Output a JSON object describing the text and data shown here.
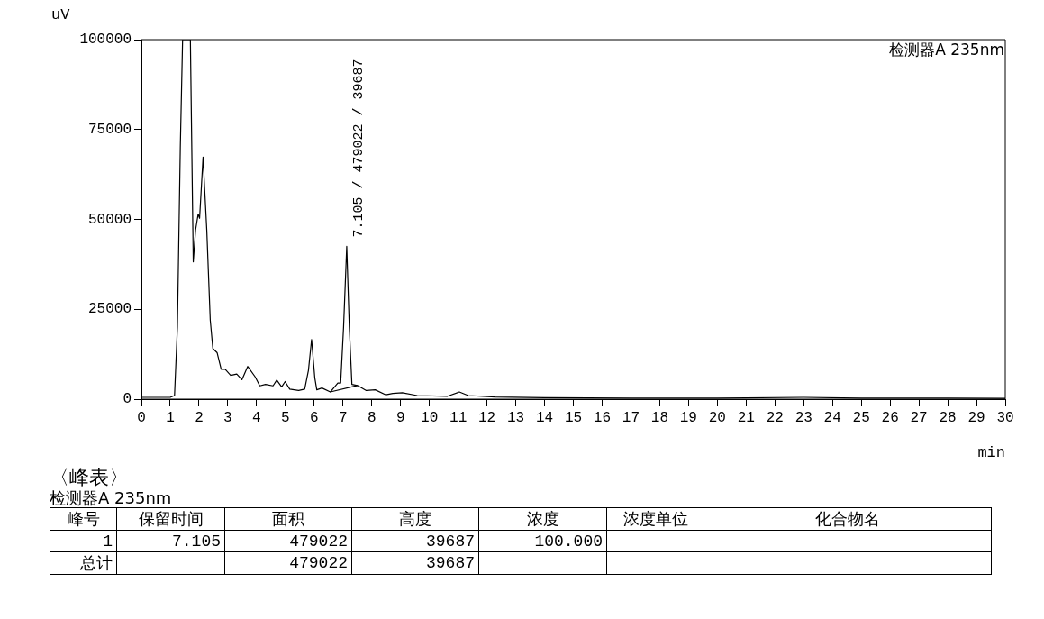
{
  "chart_data": [
    {
      "type": "line",
      "xlabel": "min",
      "ylabel": "uV",
      "xlim": [
        0,
        30
      ],
      "ylim": [
        0,
        100000
      ],
      "xticks": [
        0,
        1,
        2,
        3,
        4,
        5,
        6,
        7,
        8,
        9,
        10,
        11,
        12,
        13,
        14,
        15,
        16,
        17,
        18,
        19,
        20,
        21,
        22,
        23,
        24,
        25,
        26,
        27,
        28,
        29,
        30
      ],
      "yticks": [
        0,
        25000,
        50000,
        75000,
        100000
      ],
      "grid": false,
      "legend": false,
      "marker": "none",
      "line_style": "solid",
      "series": [
        {
          "color": "#000000",
          "x": [
            0,
            1.0,
            1.15,
            1.25,
            1.35,
            1.43,
            1.7,
            1.8,
            1.88,
            1.97,
            2.02,
            2.14,
            2.27,
            2.39,
            2.48,
            2.63,
            2.77,
            2.91,
            3.1,
            3.31,
            3.49,
            3.69,
            3.95,
            4.11,
            4.31,
            4.57,
            4.7,
            4.87,
            4.99,
            5.15,
            5.46,
            5.67,
            5.8,
            5.91,
            6.02,
            6.09,
            6.27,
            6.56,
            6.82,
            6.92,
            7.02,
            7.13,
            7.22,
            7.31,
            7.5,
            7.81,
            8.12,
            8.49,
            8.73,
            9.06,
            9.58,
            10.63,
            11.04,
            11.35,
            12.29,
            14,
            17,
            20,
            23,
            25,
            28,
            30
          ],
          "values": [
            500,
            500,
            1000,
            20000,
            70000,
            100000,
            100000,
            38200,
            47000,
            51500,
            50300,
            67300,
            47000,
            22000,
            14100,
            12900,
            8300,
            8300,
            6600,
            7000,
            5400,
            9100,
            6200,
            3700,
            4100,
            3700,
            5300,
            3400,
            4900,
            2800,
            2400,
            2800,
            8000,
            16600,
            6000,
            2600,
            3100,
            2000,
            4500,
            4500,
            20000,
            42500,
            20000,
            4100,
            3800,
            2400,
            2600,
            1200,
            1600,
            1800,
            1000,
            800,
            2000,
            1000,
            600,
            400,
            300,
            300,
            500,
            300,
            300,
            200
          ]
        },
        {
          "color": "#000000",
          "x": [
            6.56,
            7.5
          ],
          "values": [
            2000,
            3800
          ]
        }
      ],
      "annotations": [
        {
          "text": "7.105 / 479022 / 39687",
          "x": 7.105,
          "y": 42500
        },
        "检测器A 235nm"
      ]
    },
    {
      "type": "other",
      "title": "〈峰表〉",
      "subtitle": "检测器A 235nm",
      "categories": [
        "峰号",
        "保留时间",
        "面积",
        "高度",
        "浓度",
        "浓度单位",
        "化合物名"
      ],
      "cell_labels": [
        [
          "1",
          "7.105",
          "479022",
          "39687",
          "100.000",
          null,
          null
        ],
        [
          "总计",
          null,
          "479022",
          "39687",
          null,
          null,
          null
        ]
      ]
    }
  ]
}
